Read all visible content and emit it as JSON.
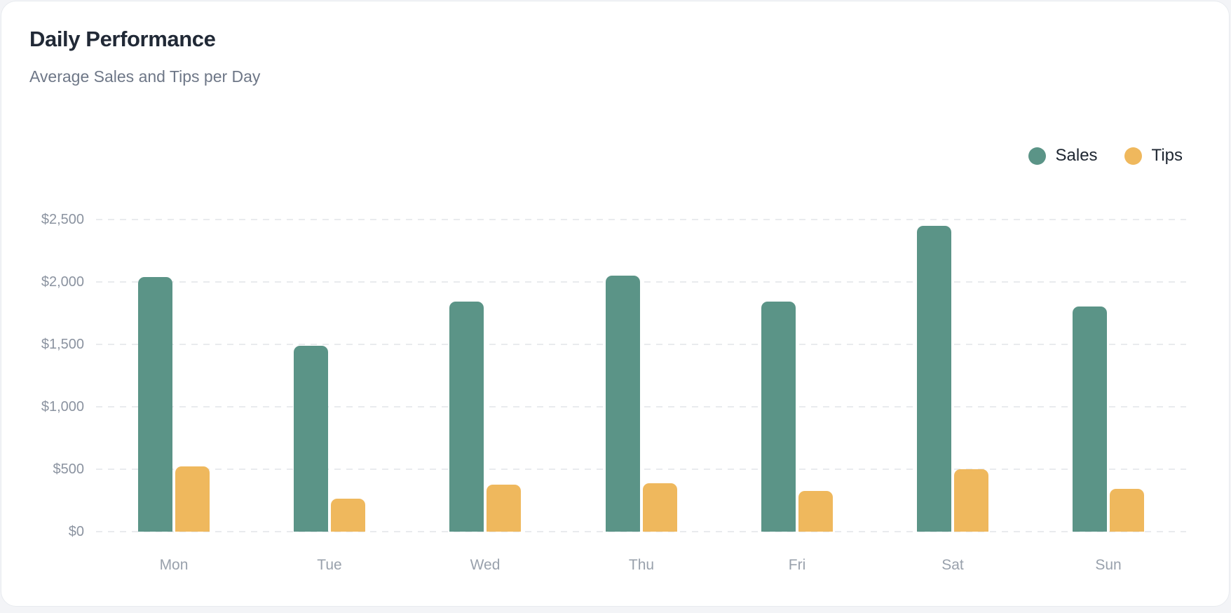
{
  "page": {
    "background": "#f3f4f7",
    "card_background": "#ffffff"
  },
  "header": {
    "title": "Daily Performance",
    "subtitle": "Average Sales and Tips per Day"
  },
  "chart_data": {
    "type": "bar",
    "title": "Daily Performance",
    "subtitle": "Average Sales and Tips per Day",
    "categories": [
      "Mon",
      "Tue",
      "Wed",
      "Thu",
      "Fri",
      "Sat",
      "Sun"
    ],
    "series": [
      {
        "name": "Sales",
        "color": "#5b9487",
        "values": [
          2040,
          1490,
          1845,
          2050,
          1840,
          2450,
          1805
        ]
      },
      {
        "name": "Tips",
        "color": "#efb85d",
        "values": [
          520,
          265,
          375,
          390,
          325,
          500,
          345
        ]
      }
    ],
    "xlabel": "",
    "ylabel": "",
    "ylim": [
      0,
      2500
    ],
    "y_ticks": [
      {
        "label": "$2,500",
        "value": 2500
      },
      {
        "label": "$2,000",
        "value": 2000
      },
      {
        "label": "$1,500",
        "value": 1500
      },
      {
        "label": "$1,000",
        "value": 1000
      },
      {
        "label": "$500",
        "value": 500
      },
      {
        "label": "$0",
        "value": 0
      }
    ],
    "grid": "dashed-horizontal",
    "legend_position": "top-right",
    "tick_label_colors": {
      "y": "#8b93a0",
      "x": "#99a1ac"
    },
    "gridline_color": "#e9ebee"
  }
}
